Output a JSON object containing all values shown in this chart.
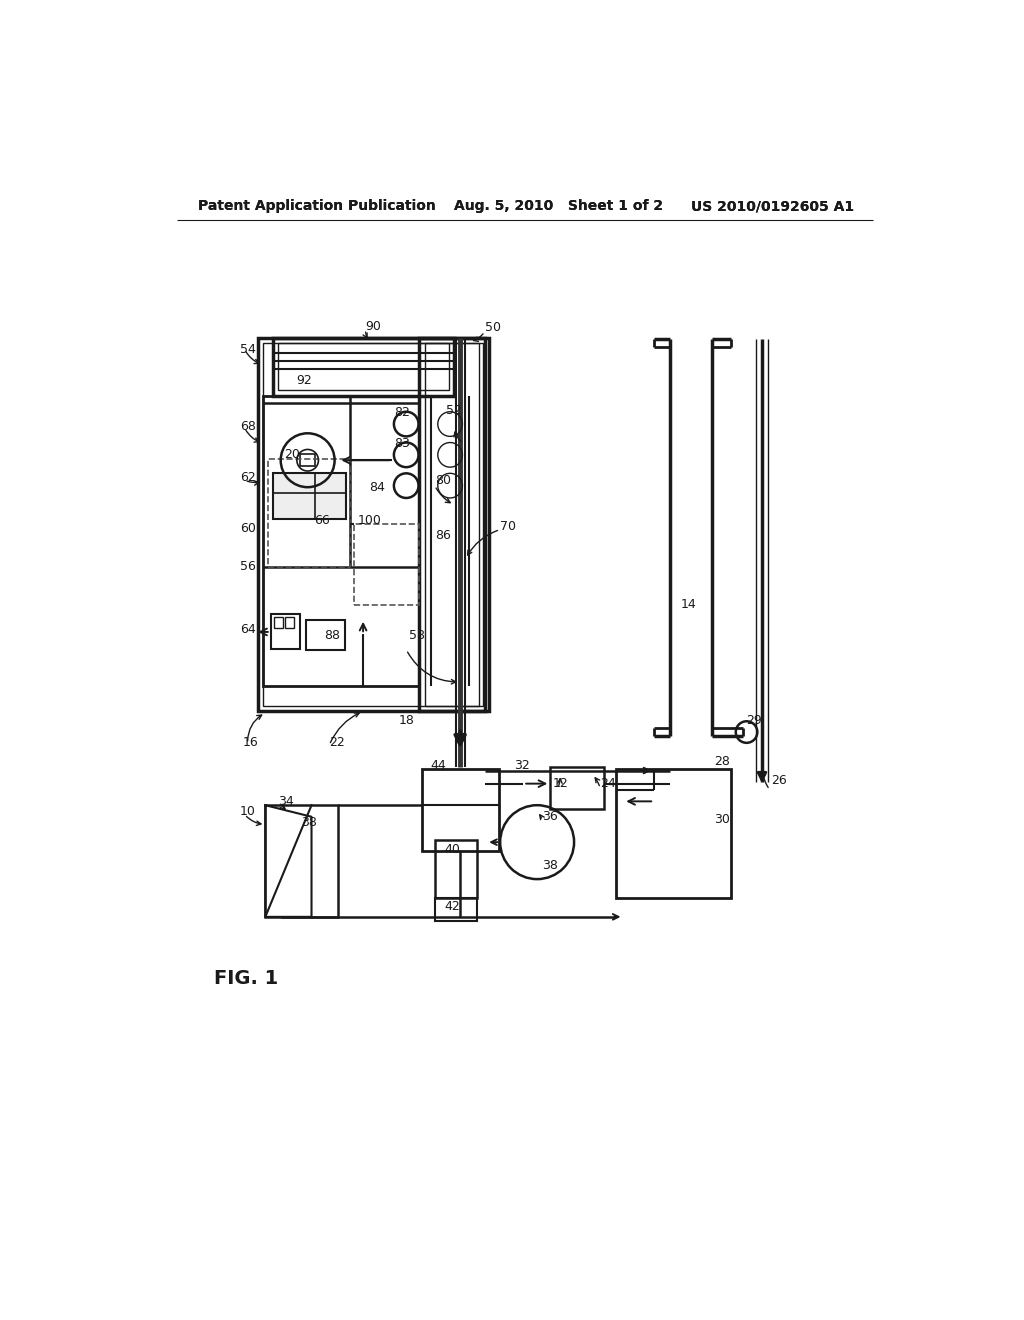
{
  "bg_color": "#ffffff",
  "line_color": "#1a1a1a",
  "header_left": "Patent Application Publication",
  "header_mid": "Aug. 5, 2010   Sheet 1 of 2",
  "header_right": "US 2010/0192605 A1"
}
